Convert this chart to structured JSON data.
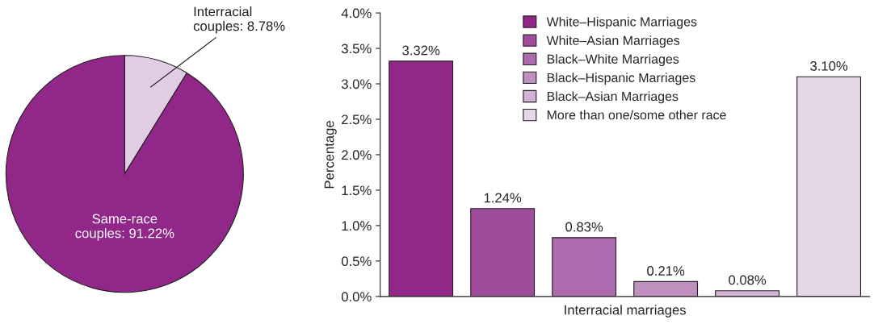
{
  "chart_data": [
    {
      "type": "pie",
      "categories": [
        null,
        null
      ],
      "values": [
        8.78,
        91.22
      ],
      "colors": [
        "#e0cce3",
        "#92278a"
      ],
      "value_labels": [
        "Interracial\ncouples: 8.78%",
        "Same-race\ncouples: 91.22%"
      ]
    },
    {
      "type": "bar",
      "categories": [
        null,
        null,
        null,
        null,
        null,
        null
      ],
      "xlabel": "Interracial marriages",
      "ylabel": "Percentage",
      "ylim": [
        0,
        4
      ],
      "yticks": [
        {
          "value": 0,
          "label": "0.0%"
        },
        {
          "value": 0.5,
          "label": "0.5%"
        },
        {
          "value": 1,
          "label": "1.0%"
        },
        {
          "value": 1.5,
          "label": "1.5%"
        },
        {
          "value": 2,
          "label": "2.0%"
        },
        {
          "value": 2.5,
          "label": "2.5%"
        },
        {
          "value": 3,
          "label": "3.0%"
        },
        {
          "value": 3.5,
          "label": "3.5%"
        },
        {
          "value": 4,
          "label": "4.0%"
        }
      ],
      "legend": "top",
      "grid": false,
      "series": [
        {
          "name": "White–Hispanic Marriages",
          "color": "#92278a",
          "values": [
            3.32,
            null,
            null,
            null,
            null,
            null
          ],
          "value_labels": [
            "3.32%",
            null,
            null,
            null,
            null,
            null
          ]
        },
        {
          "name": "White–Asian Marriages",
          "color": "#9d4d9b",
          "values": [
            null,
            1.24,
            null,
            null,
            null,
            null
          ],
          "value_labels": [
            null,
            "1.24%",
            null,
            null,
            null,
            null
          ]
        },
        {
          "name": "Black–White Marriages",
          "color": "#ab6bad",
          "values": [
            null,
            null,
            0.83,
            null,
            null,
            null
          ],
          "value_labels": [
            null,
            null,
            "0.83%",
            null,
            null,
            null
          ]
        },
        {
          "name": "Black–Hispanic Marriages",
          "color": "#bf8fbf",
          "values": [
            null,
            null,
            null,
            0.21,
            null,
            null
          ],
          "value_labels": [
            null,
            null,
            null,
            "0.21%",
            null,
            null
          ]
        },
        {
          "name": "Black–Asian Marriages",
          "color": "#d4b2d6",
          "values": [
            null,
            null,
            null,
            null,
            0.08,
            null
          ],
          "value_labels": [
            null,
            null,
            null,
            null,
            "0.08%",
            null
          ]
        },
        {
          "name": "More than one/some other race",
          "color": "#e6d7e8",
          "values": [
            null,
            null,
            null,
            null,
            null,
            3.1
          ],
          "value_labels": [
            null,
            null,
            null,
            null,
            null,
            "3.10%"
          ]
        }
      ]
    }
  ]
}
